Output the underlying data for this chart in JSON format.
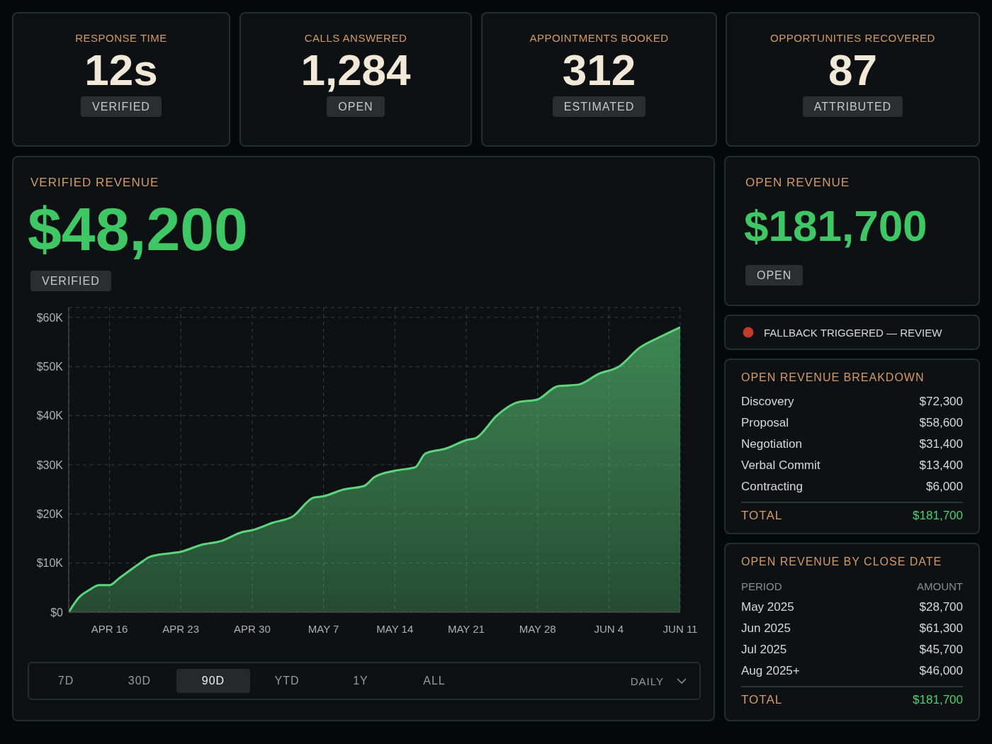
{
  "chart_data": [
    {
      "type": "other",
      "title": "RESPONSE TIME",
      "annotations": [
        "12s",
        "VERIFIED"
      ]
    },
    {
      "type": "other",
      "title": "CALLS ANSWERED",
      "annotations": [
        "1,284",
        "OPEN"
      ]
    },
    {
      "type": "other",
      "title": "APPOINTMENTS BOOKED",
      "annotations": [
        "312",
        "ESTIMATED"
      ]
    },
    {
      "type": "other",
      "title": "OPPORTUNITIES RECOVERED",
      "annotations": [
        "87",
        "ATTRIBUTED"
      ]
    },
    {
      "type": "area",
      "title": "VERIFIED REVENUE",
      "subtitle": "$48,200",
      "annotations": [
        "VERIFIED",
        "7D",
        "30D",
        "90D",
        "YTD",
        "1Y",
        "ALL",
        "DAILY"
      ],
      "x": [
        "--04-12",
        "--04-13",
        "--04-14",
        "--04-15",
        "--04-16",
        "--04-17",
        "--04-18",
        "--04-19",
        "--04-20",
        "--04-22",
        "--04-23",
        "--04-25",
        "--04-27",
        "--04-29",
        "--04-30",
        "--05-02",
        "--05-04",
        "--05-06",
        "--05-07",
        "--05-09",
        "--05-11",
        "--05-12",
        "--05-14",
        "--05-16",
        "--05-17",
        "--05-19",
        "--05-21",
        "--05-22",
        "--05-24",
        "--05-26",
        "--05-28",
        "--05-30",
        "--06-01",
        "--06-03",
        "--06-05",
        "--06-07",
        "--06-09",
        "--06-11"
      ],
      "series": [
        {
          "color": "#5ed47c",
          "values": [
            0,
            3000,
            4500,
            5500,
            5500,
            7000,
            8500,
            10000,
            11300,
            12000,
            12300,
            13700,
            14500,
            16300,
            16700,
            18200,
            19500,
            23300,
            23600,
            25000,
            25700,
            27500,
            28800,
            29500,
            32300,
            33300,
            35000,
            35500,
            40000,
            42700,
            43300,
            46000,
            46300,
            48500,
            50000,
            53800,
            56000,
            58000
          ]
        }
      ],
      "xlim": [
        "--04-12",
        "--06-11"
      ],
      "xticks": [
        {
          "value": "--04-16",
          "label": "APR 16"
        },
        {
          "value": "--04-23",
          "label": "APR 23"
        },
        {
          "value": "--04-30",
          "label": "APR 30"
        },
        {
          "value": "--05-07",
          "label": "MAY 7"
        },
        {
          "value": "--05-14",
          "label": "MAY 14"
        },
        {
          "value": "--05-21",
          "label": "MAY 21"
        },
        {
          "value": "--05-28",
          "label": "MAY 28"
        },
        {
          "value": "--06-04",
          "label": "JUN 4"
        },
        {
          "value": "--06-11",
          "label": "JUN 11"
        }
      ],
      "ylim": [
        0,
        62000
      ],
      "yticks": [
        {
          "value": 0,
          "label": "$0"
        },
        {
          "value": 10000,
          "label": "$10K"
        },
        {
          "value": 20000,
          "label": "$20K"
        },
        {
          "value": 30000,
          "label": "$30K"
        },
        {
          "value": 40000,
          "label": "$40K"
        },
        {
          "value": 50000,
          "label": "$50K"
        },
        {
          "value": 60000,
          "label": "$60K"
        }
      ],
      "grid": true
    },
    {
      "type": "other",
      "title": "OPEN REVENUE",
      "annotations": [
        "$181,700",
        "OPEN"
      ]
    },
    {
      "type": "other",
      "title": "FALLBACK TRIGGERED — REVIEW"
    },
    {
      "type": "other",
      "title": "OPEN REVENUE BREAKDOWN",
      "categories": [
        "Discovery",
        "Proposal",
        "Negotiation",
        "Verbal Commit",
        "Contracting"
      ],
      "value_labels": [
        "$72,300",
        "$58,600",
        "$31,400",
        "$13,400",
        "$6,000"
      ],
      "annotations": [
        "TOTAL",
        "$181,700"
      ]
    },
    {
      "type": "other",
      "title": "OPEN REVENUE BY CLOSE DATE",
      "categories": [
        "May 2025",
        "Jun 2025",
        "Jul 2025",
        "Aug 2025+"
      ],
      "value_labels": [
        "$28,700",
        "$61,300",
        "$45,700",
        "$46,000"
      ],
      "annotations": [
        "PERIOD",
        "AMOUNT",
        "TOTAL",
        "$181,700"
      ]
    }
  ]
}
